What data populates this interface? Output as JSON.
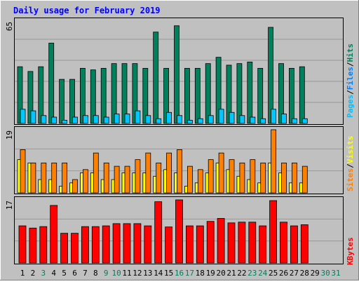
{
  "title": "Daily usage for February 2019",
  "colors": {
    "background": "#C0C0C0",
    "title": "#0000FF",
    "pages": "#008040",
    "files": "#0080FF",
    "hits": "#00805C",
    "sites": "#FF8000",
    "visits": "#FFFF00",
    "kbytes": "#FF0000",
    "weekend_day": "#00805C",
    "weekday": "#000000"
  },
  "chart_data": [
    {
      "type": "bar",
      "panel": "hits-files-pages",
      "y_max_label": "65",
      "legend": [
        "Pages",
        "/",
        "Files",
        "/",
        "Hits"
      ],
      "categories": [
        "1",
        "2",
        "3",
        "4",
        "5",
        "6",
        "7",
        "8",
        "9",
        "10",
        "11",
        "12",
        "13",
        "14",
        "15",
        "16",
        "17",
        "18",
        "19",
        "20",
        "21",
        "22",
        "23",
        "24",
        "25",
        "26",
        "27",
        "28",
        "29",
        "30",
        "31"
      ],
      "series": [
        {
          "name": "Hits",
          "values": [
            36,
            33,
            36,
            51,
            28,
            28,
            35,
            34,
            35,
            38,
            38,
            38,
            35,
            58,
            35,
            62,
            35,
            35,
            38,
            42,
            37,
            38,
            39,
            35,
            61,
            38,
            35,
            36,
            null,
            null,
            null
          ]
        },
        {
          "name": "Files",
          "values": [
            9,
            8,
            5,
            4,
            2,
            4,
            5,
            5,
            4,
            6,
            6,
            8,
            5,
            3,
            7,
            5,
            2,
            3,
            5,
            9,
            7,
            5,
            4,
            3,
            9,
            6,
            3,
            3,
            null,
            null,
            null
          ]
        },
        {
          "name": "Pages",
          "values": [
            9,
            8,
            5,
            4,
            2,
            4,
            5,
            5,
            4,
            6,
            6,
            8,
            5,
            3,
            7,
            5,
            2,
            3,
            5,
            9,
            7,
            5,
            4,
            3,
            9,
            6,
            3,
            3,
            null,
            null,
            null
          ]
        }
      ]
    },
    {
      "type": "bar",
      "panel": "visits-sites",
      "y_max_label": "19",
      "legend": [
        "Sites",
        "/",
        "Visits"
      ],
      "categories": [
        "1",
        "2",
        "3",
        "4",
        "5",
        "6",
        "7",
        "8",
        "9",
        "10",
        "11",
        "12",
        "13",
        "14",
        "15",
        "16",
        "17",
        "18",
        "19",
        "20",
        "21",
        "22",
        "23",
        "24",
        "25",
        "26",
        "27",
        "28",
        "29",
        "30",
        "31"
      ],
      "series": [
        {
          "name": "Sites",
          "values": [
            13,
            9,
            9,
            9,
            9,
            4,
            7,
            12,
            9,
            8,
            8,
            10,
            12,
            9,
            12,
            13,
            8,
            7,
            10,
            12,
            10,
            9,
            10,
            9,
            19,
            9,
            9,
            8,
            null,
            null,
            null
          ]
        },
        {
          "name": "Visits",
          "values": [
            10,
            9,
            4,
            4,
            2,
            3,
            6,
            6,
            4,
            4,
            6,
            6,
            6,
            5,
            7,
            6,
            2,
            3,
            6,
            9,
            7,
            5,
            4,
            3,
            9,
            6,
            3,
            3,
            null,
            null,
            null
          ]
        }
      ]
    },
    {
      "type": "bar",
      "panel": "kbytes",
      "y_max_label": "17",
      "legend": [
        "KBytes"
      ],
      "categories": [
        "1",
        "2",
        "3",
        "4",
        "5",
        "6",
        "7",
        "8",
        "9",
        "10",
        "11",
        "12",
        "13",
        "14",
        "15",
        "16",
        "17",
        "18",
        "19",
        "20",
        "21",
        "22",
        "23",
        "24",
        "25",
        "26",
        "27",
        "28",
        "29",
        "30",
        "31"
      ],
      "series": [
        {
          "name": "KBytes",
          "values": [
            10,
            9.4,
            9.8,
            15.5,
            8,
            8,
            9.8,
            9.8,
            10,
            10.6,
            10.6,
            10.6,
            10,
            16.5,
            9.7,
            17,
            10,
            10,
            11.2,
            12,
            10.8,
            11,
            11,
            10,
            16.8,
            11,
            10,
            10.3,
            null,
            null,
            null
          ]
        }
      ]
    }
  ],
  "days": [
    {
      "label": "1",
      "weekend": false
    },
    {
      "label": "2",
      "weekend": false
    },
    {
      "label": "3",
      "weekend": true
    },
    {
      "label": "4",
      "weekend": false
    },
    {
      "label": "5",
      "weekend": false
    },
    {
      "label": "6",
      "weekend": false
    },
    {
      "label": "7",
      "weekend": false
    },
    {
      "label": "8",
      "weekend": false
    },
    {
      "label": "9",
      "weekend": true
    },
    {
      "label": "10",
      "weekend": true
    },
    {
      "label": "11",
      "weekend": false
    },
    {
      "label": "12",
      "weekend": false
    },
    {
      "label": "13",
      "weekend": false
    },
    {
      "label": "14",
      "weekend": false
    },
    {
      "label": "15",
      "weekend": false
    },
    {
      "label": "16",
      "weekend": true
    },
    {
      "label": "17",
      "weekend": true
    },
    {
      "label": "18",
      "weekend": false
    },
    {
      "label": "19",
      "weekend": false
    },
    {
      "label": "20",
      "weekend": false
    },
    {
      "label": "21",
      "weekend": false
    },
    {
      "label": "22",
      "weekend": false
    },
    {
      "label": "23",
      "weekend": true
    },
    {
      "label": "24",
      "weekend": true
    },
    {
      "label": "25",
      "weekend": false
    },
    {
      "label": "26",
      "weekend": false
    },
    {
      "label": "27",
      "weekend": false
    },
    {
      "label": "28",
      "weekend": false
    },
    {
      "label": "29",
      "weekend": false
    },
    {
      "label": "30",
      "weekend": true
    },
    {
      "label": "31",
      "weekend": true
    }
  ]
}
